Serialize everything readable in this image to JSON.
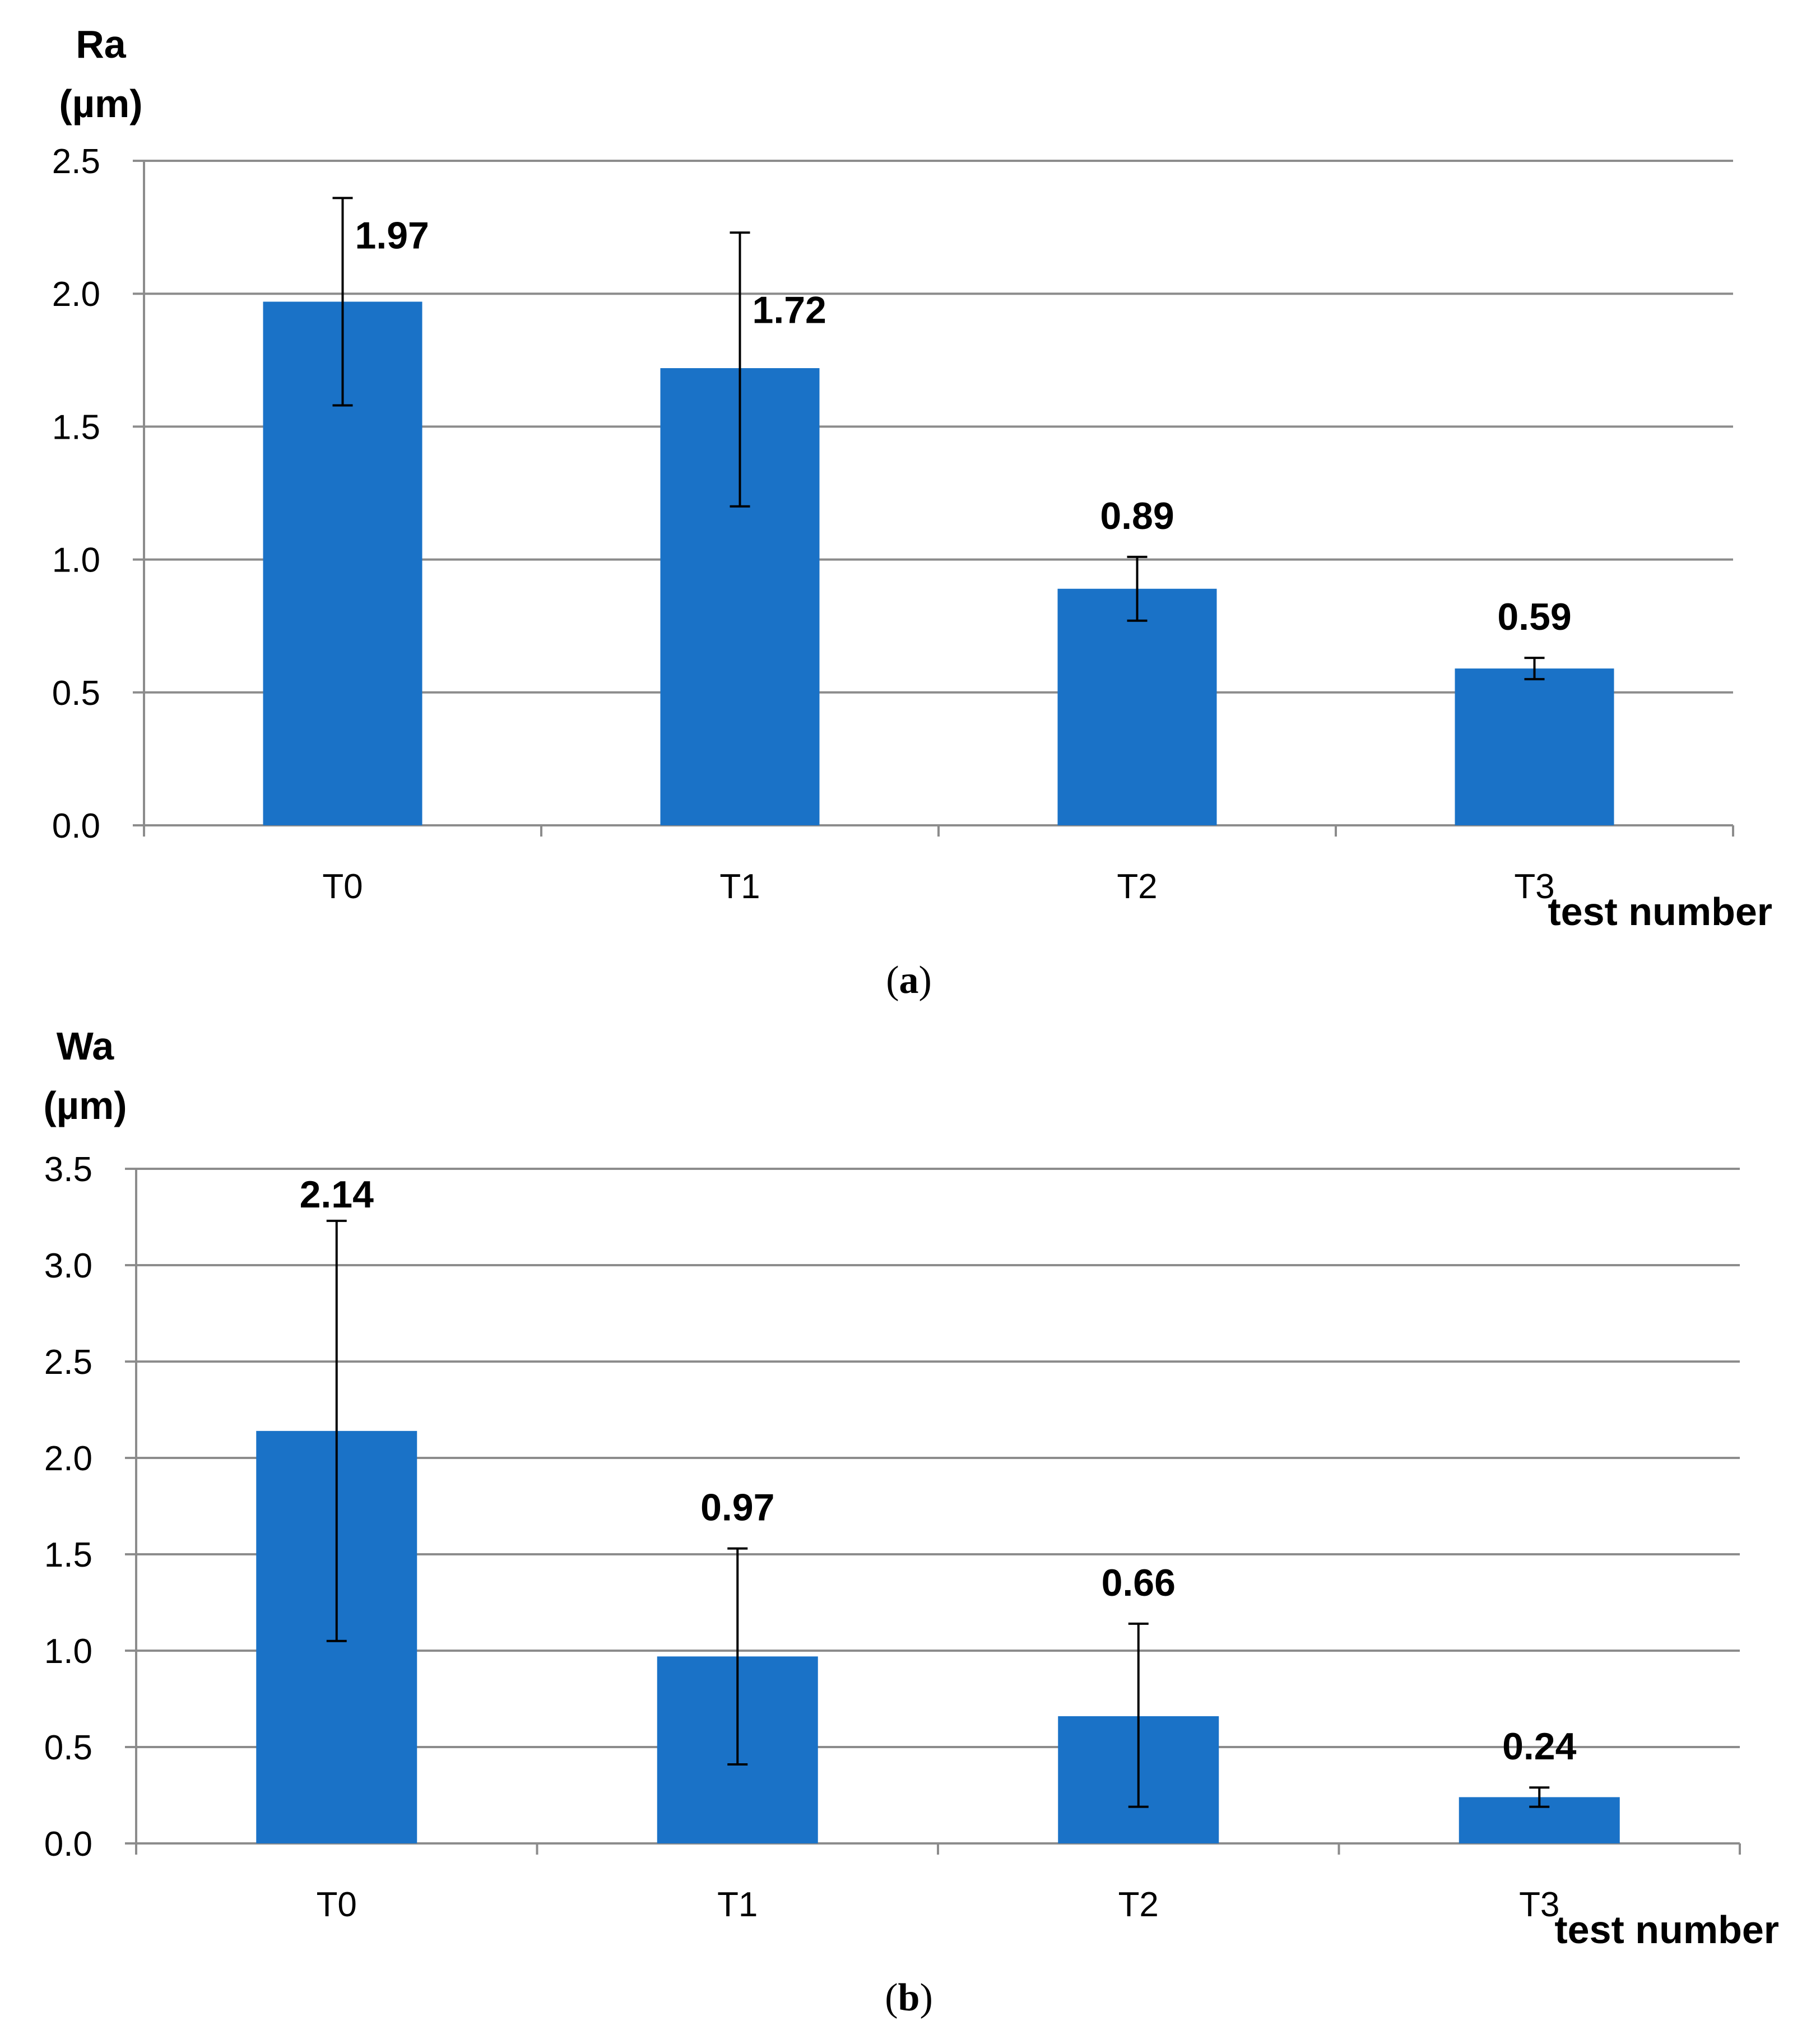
{
  "chart_data": [
    {
      "type": "bar",
      "title": "",
      "caption_open": "(",
      "caption_letter": "a",
      "caption_close": ")",
      "ylabel_line1": "Ra",
      "ylabel_line2": "(µm)",
      "xlabel": "test number",
      "categories": [
        "T0",
        "T1",
        "T2",
        "T3"
      ],
      "values": [
        1.97,
        1.72,
        0.89,
        0.59
      ],
      "value_labels": [
        "1.97",
        "1.72",
        "0.89",
        "0.59"
      ],
      "error_low": [
        1.58,
        1.2,
        0.77,
        0.55
      ],
      "error_high": [
        2.36,
        2.23,
        1.01,
        0.63
      ],
      "ylim": [
        0,
        2.5
      ],
      "yticks": [
        0,
        0.5,
        1,
        1.5,
        2,
        2.5
      ],
      "ytick_labels": [
        "0.0",
        "0.5",
        "1.0",
        "1.5",
        "2.0",
        "2.5"
      ],
      "grid": true,
      "bar_color": "#1a72c7"
    },
    {
      "type": "bar",
      "title": "",
      "caption_open": "(",
      "caption_letter": "b",
      "caption_close": ")",
      "ylabel_line1": "Wa",
      "ylabel_line2": "(µm)",
      "xlabel": "test number",
      "categories": [
        "T0",
        "T1",
        "T2",
        "T3"
      ],
      "values": [
        2.14,
        0.97,
        0.66,
        0.24
      ],
      "value_labels": [
        "2.14",
        "0.97",
        "0.66",
        "0.24"
      ],
      "error_low": [
        1.05,
        0.41,
        0.19,
        0.19
      ],
      "error_high": [
        3.23,
        1.53,
        1.14,
        0.29
      ],
      "ylim": [
        0,
        3.5
      ],
      "yticks": [
        0,
        0.5,
        1,
        1.5,
        2,
        2.5,
        3,
        3.5
      ],
      "ytick_labels": [
        "0.0",
        "0.5",
        "1.0",
        "1.5",
        "2.0",
        "2.5",
        "3.0",
        "3.5"
      ],
      "grid": true,
      "bar_color": "#1a72c7"
    }
  ]
}
